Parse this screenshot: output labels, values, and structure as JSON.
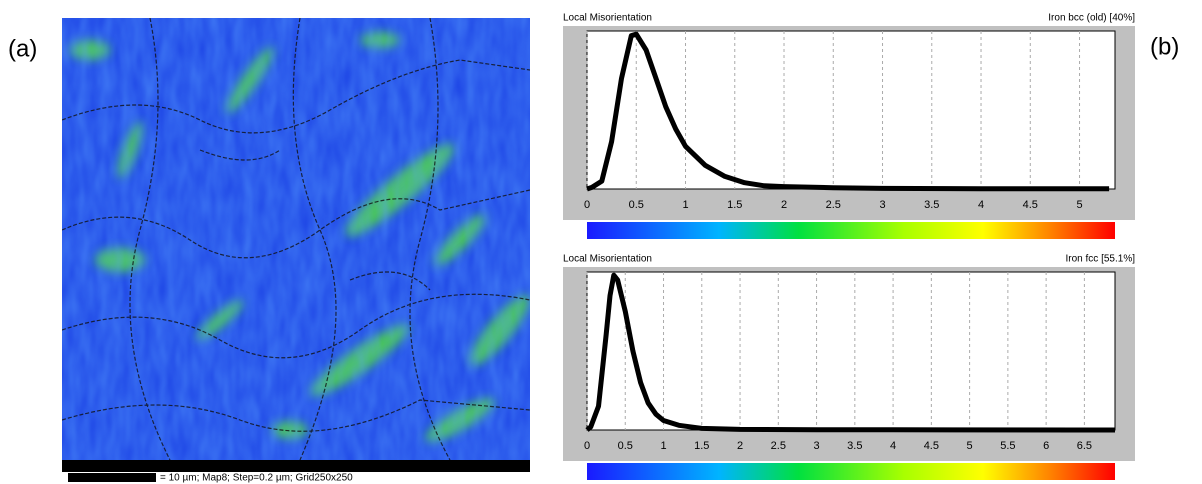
{
  "panel_labels": [
    "(a)",
    "(b)"
  ],
  "map": {
    "caption": "= 10 µm; Map8; Step=0.2 µm; Grid250x250"
  },
  "chart_data": [
    {
      "type": "line",
      "title": "Local Misorientation",
      "subtitle": "Iron bcc (old) [40%]",
      "color": "#000000",
      "grid": true,
      "x": [
        0,
        0.05,
        0.15,
        0.25,
        0.35,
        0.45,
        0.5,
        0.6,
        0.7,
        0.8,
        0.9,
        1.0,
        1.2,
        1.4,
        1.6,
        1.8,
        2.0,
        2.5,
        3.0,
        4.0,
        5.3
      ],
      "values": [
        0,
        0.01,
        0.05,
        0.3,
        0.7,
        0.97,
        0.98,
        0.88,
        0.7,
        0.52,
        0.38,
        0.27,
        0.15,
        0.08,
        0.04,
        0.02,
        0.015,
        0.008,
        0.004,
        0.002,
        0.001
      ],
      "xlim": [
        0,
        5.36
      ],
      "ylim": [
        0,
        1
      ],
      "xticks": [
        0,
        0.5,
        1,
        1.5,
        2,
        2.5,
        3,
        3.5,
        4,
        4.5,
        5
      ]
    },
    {
      "type": "line",
      "title": "Local Misorientation",
      "subtitle": "Iron fcc [55.1%]",
      "color": "#000000",
      "grid": true,
      "x": [
        0,
        0.05,
        0.15,
        0.25,
        0.3,
        0.35,
        0.4,
        0.5,
        0.6,
        0.7,
        0.8,
        0.9,
        1.0,
        1.2,
        1.5,
        2.0,
        3.0,
        4.0,
        6.9
      ],
      "values": [
        0,
        0.02,
        0.15,
        0.6,
        0.85,
        0.98,
        0.95,
        0.75,
        0.5,
        0.3,
        0.17,
        0.1,
        0.06,
        0.03,
        0.01,
        0.004,
        0.002,
        0.001,
        0
      ],
      "xlim": [
        0,
        6.9
      ],
      "ylim": [
        0,
        1
      ],
      "xticks": [
        0,
        0.5,
        1,
        1.5,
        2,
        2.5,
        3,
        3.5,
        4,
        4.5,
        5,
        5.5,
        6,
        6.5
      ]
    }
  ]
}
